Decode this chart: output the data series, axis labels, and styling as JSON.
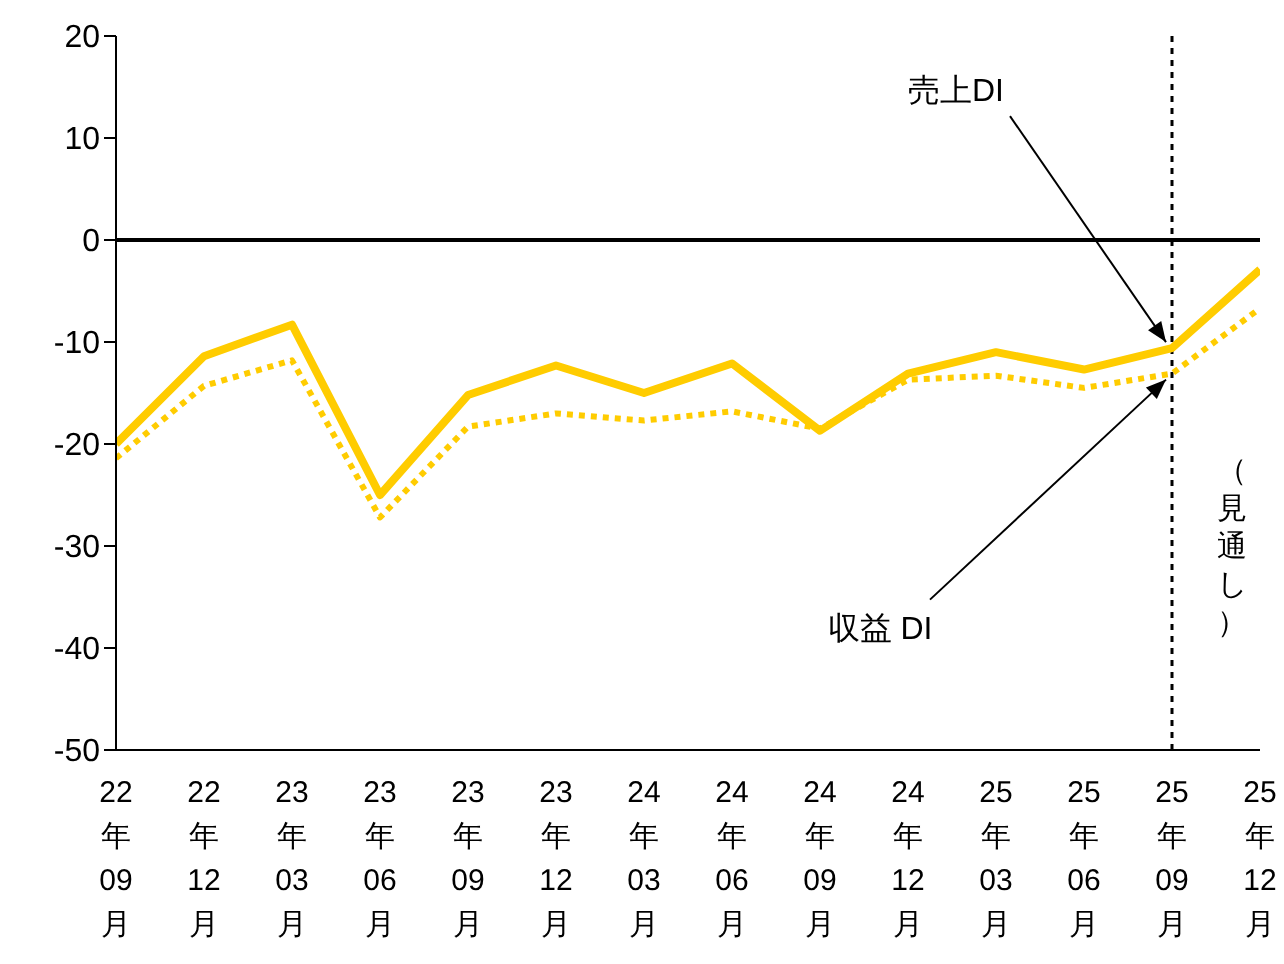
{
  "chart_data": {
    "type": "line",
    "categories": [
      "22年09月",
      "22年12月",
      "23年03月",
      "23年06月",
      "23年09月",
      "23年12月",
      "24年03月",
      "24年06月",
      "24年09月",
      "24年12月",
      "25年03月",
      "25年06月",
      "25年09月",
      "25年12月"
    ],
    "series": [
      {
        "color": "#ffcc00",
        "line_style": "solid",
        "values": [
          -20,
          -11.4,
          -8.3,
          -25,
          -15.2,
          -12.3,
          -15,
          -12.1,
          -18.7,
          -13.1,
          -11,
          -12.7,
          -10.6,
          -2.9
        ]
      },
      {
        "color": "#ffcc00",
        "line_style": "dotted",
        "values": [
          -21.4,
          -14.3,
          -11.8,
          -27.2,
          -18.3,
          -17,
          -17.7,
          -16.8,
          -18.5,
          -13.7,
          -13.3,
          -14.5,
          -13.1,
          -6.7
        ]
      }
    ],
    "ylim": [
      -50,
      20
    ],
    "yticks": [
      -50,
      -40,
      -30,
      -20,
      -10,
      0,
      10,
      20
    ],
    "ref_lines": [
      {
        "axis": "y",
        "value": 0,
        "color": "#000000",
        "line_style": "solid"
      },
      {
        "axis": "x",
        "value": "25年09月",
        "label": "（見通し）",
        "color": "#000000",
        "line_style": "dotted"
      }
    ],
    "annotations": [
      {
        "text": "売上DI",
        "x": "25年09月",
        "y": -10.6
      },
      {
        "text": "収益 DI",
        "x": "25年09月",
        "y": -13.1
      }
    ],
    "grid": false,
    "legend": false,
    "marker": "none"
  }
}
